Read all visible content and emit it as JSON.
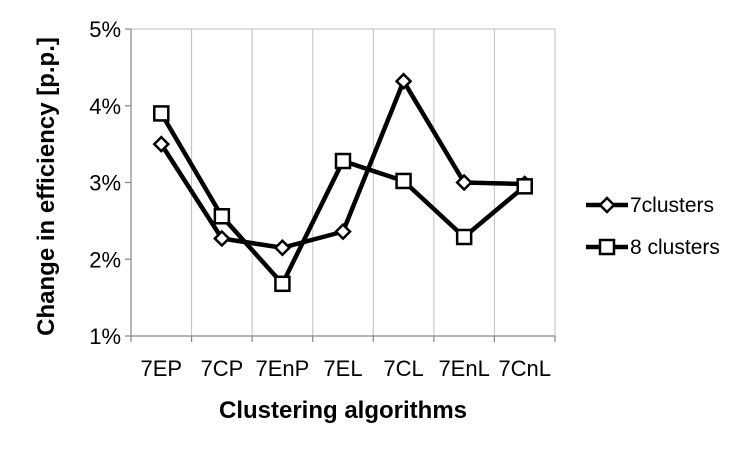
{
  "chart_data": {
    "type": "line",
    "title": "",
    "xlabel": "Clustering algorithms",
    "ylabel": "Change in efficiency [p.p.]",
    "categories": [
      "7EP",
      "7CP",
      "7EnP",
      "7EL",
      "7CL",
      "7EnL",
      "7CnL"
    ],
    "ylim": [
      1,
      5
    ],
    "yticks": [
      1,
      2,
      3,
      4,
      5
    ],
    "ytick_labels": [
      "1%",
      "2%",
      "3%",
      "4%",
      "5%"
    ],
    "grid": "vertical",
    "legend_position": "right",
    "series": [
      {
        "name": "7clusters",
        "marker": "diamond",
        "color": "#000000",
        "values": [
          3.5,
          2.27,
          2.15,
          2.36,
          4.32,
          3.0,
          2.98
        ]
      },
      {
        "name": "8 clusters",
        "marker": "square",
        "color": "#000000",
        "values": [
          3.9,
          2.56,
          1.68,
          3.28,
          3.02,
          2.29,
          2.95
        ]
      }
    ]
  }
}
